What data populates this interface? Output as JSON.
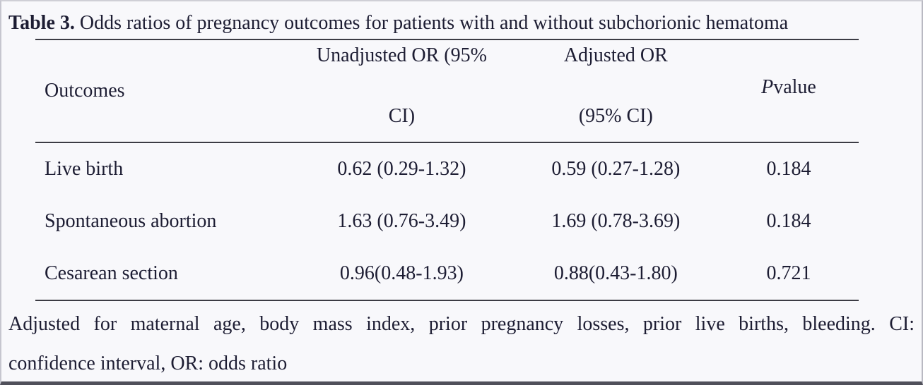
{
  "title": {
    "label": "Table 3.",
    "text": " Odds ratios of pregnancy outcomes for patients with and without subchorionic hematoma"
  },
  "table": {
    "headers": {
      "outcomes": "Outcomes",
      "unadjusted_line1": "Unadjusted OR (95%",
      "unadjusted_line2": "CI)",
      "adjusted_line1": "Adjusted OR",
      "adjusted_line2": "(95% CI)",
      "p_italic": "P",
      "p_rest": " value"
    },
    "rows": [
      {
        "outcome": "Live birth",
        "unadjusted_or": "0.62 (0.29-1.32)",
        "adjusted_or": "0.59 (0.27-1.28)",
        "p_value": "0.184"
      },
      {
        "outcome": "Spontaneous abortion",
        "unadjusted_or": "1.63 (0.76-3.49)",
        "adjusted_or": "1.69 (0.78-3.69)",
        "p_value": "0.184"
      },
      {
        "outcome": "Cesarean section",
        "unadjusted_or": "0.96(0.48-1.93)",
        "adjusted_or": "0.88(0.43-1.80)",
        "p_value": "0.721"
      }
    ]
  },
  "footnote": {
    "line1": "Adjusted for maternal age, body mass index, prior pregnancy losses, prior live births, bleeding. CI:",
    "line2": "confidence interval, OR: odds ratio"
  },
  "colors": {
    "text": "#1d1d33",
    "background": "#f8f8fb",
    "rule": "#3c3c44"
  }
}
